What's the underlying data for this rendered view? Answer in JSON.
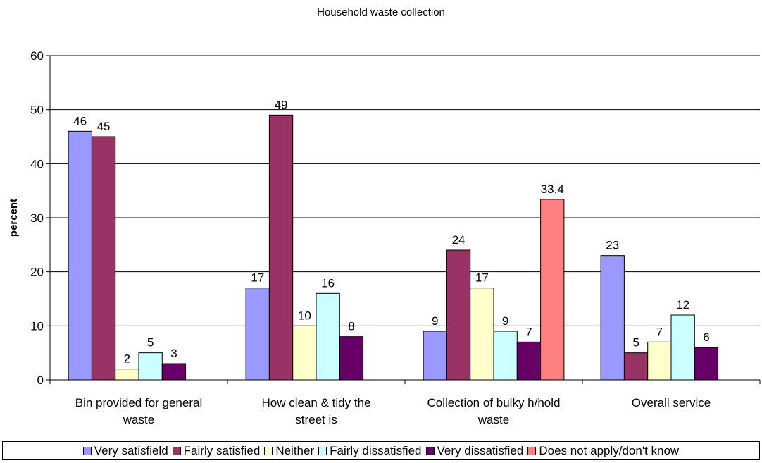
{
  "chart_data": {
    "type": "bar",
    "title": "Household waste collection",
    "xlabel": "",
    "ylabel": "percent",
    "ylim": [
      0,
      60
    ],
    "yticks": [
      0,
      10,
      20,
      30,
      40,
      50,
      60
    ],
    "grid": true,
    "legend_position": "bottom",
    "categories": [
      [
        "Bin provided for general",
        "waste"
      ],
      [
        "How clean & tidy the",
        "street is"
      ],
      [
        "Collection of bulky h/hold",
        "waste"
      ],
      [
        "Overall service"
      ]
    ],
    "series": [
      {
        "name": "Very satisfield",
        "color": "#9999ff",
        "values": [
          46,
          17,
          9,
          23
        ],
        "labels": [
          "46",
          "17",
          "9",
          "23"
        ]
      },
      {
        "name": "Fairly satisfied",
        "color": "#993366",
        "values": [
          45,
          49,
          24,
          5
        ],
        "labels": [
          "45",
          "49",
          "24",
          "5"
        ]
      },
      {
        "name": "Neither",
        "color": "#ffffcc",
        "values": [
          2,
          10,
          17,
          7
        ],
        "labels": [
          "2",
          "10",
          "17",
          "7"
        ]
      },
      {
        "name": "Fairly dissatisfied",
        "color": "#ccffff",
        "values": [
          5,
          16,
          9,
          12
        ],
        "labels": [
          "5",
          "16",
          "9",
          "12"
        ]
      },
      {
        "name": "Very dissatisfied",
        "color": "#660066",
        "values": [
          3,
          8,
          7,
          6
        ],
        "labels": [
          "3",
          "8",
          "7",
          "6"
        ]
      },
      {
        "name": "Does not apply/don't know",
        "color": "#ff8080",
        "values": [
          null,
          null,
          33.4,
          null
        ],
        "labels": [
          "",
          "",
          "33.4",
          ""
        ]
      }
    ]
  }
}
